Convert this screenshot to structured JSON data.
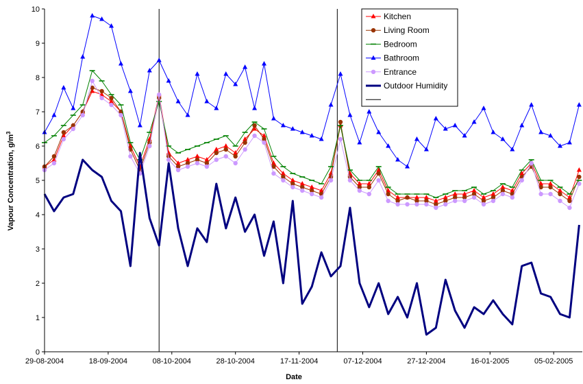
{
  "chart_data": {
    "type": "line",
    "xlabel": "Date",
    "ylabel": "Vapour Concentration, g/m",
    "ylabel_sup": "3",
    "ylim": [
      0,
      10
    ],
    "yticks": [
      "0",
      "1",
      "2",
      "3",
      "4",
      "5",
      "6",
      "7",
      "8",
      "9",
      "10"
    ],
    "xlim": [
      "2004-08-29",
      "2005-02-14"
    ],
    "xtick_labels": [
      "29-08-2004",
      "18-09-2004",
      "08-10-2004",
      "28-10-2004",
      "17-11-2004",
      "07-12-2004",
      "27-12-2004",
      "16-01-2005",
      "05-02-2005"
    ],
    "vertical_lines": [
      "2004-10-04",
      "2004-11-29"
    ],
    "legend_position": "top-right",
    "legend": [
      "Kitchen",
      "Living Room",
      "Bedroom",
      "Bathroom",
      "Entrance",
      "Outdoor Humidity",
      ""
    ],
    "colors": {
      "Kitchen": "#ff0000",
      "Living Room": "#993300",
      "Bedroom": "#008000",
      "Bathroom": "#0000ff",
      "Entrance": "#cc99ff",
      "Outdoor Humidity": "#000080",
      "vertical_lines": "#000000"
    },
    "series": [
      {
        "name": "Kitchen",
        "marker": "triangle",
        "x": [
          "2004-08-29",
          "2004-09-01",
          "2004-09-04",
          "2004-09-07",
          "2004-09-10",
          "2004-09-13",
          "2004-09-16",
          "2004-09-19",
          "2004-09-22",
          "2004-09-25",
          "2004-09-28",
          "2004-10-01",
          "2004-10-04",
          "2004-10-07",
          "2004-10-10",
          "2004-10-13",
          "2004-10-16",
          "2004-10-19",
          "2004-10-22",
          "2004-10-25",
          "2004-10-28",
          "2004-10-31",
          "2004-11-03",
          "2004-11-06",
          "2004-11-09",
          "2004-11-12",
          "2004-11-15",
          "2004-11-18",
          "2004-11-21",
          "2004-11-24",
          "2004-11-27",
          "2004-11-30",
          "2004-12-03",
          "2004-12-06",
          "2004-12-09",
          "2004-12-12",
          "2004-12-15",
          "2004-12-18",
          "2004-12-21",
          "2004-12-24",
          "2004-12-27",
          "2004-12-30",
          "2005-01-02",
          "2005-01-05",
          "2005-01-08",
          "2005-01-11",
          "2005-01-14",
          "2005-01-17",
          "2005-01-20",
          "2005-01-23",
          "2005-01-26",
          "2005-01-29",
          "2005-02-01",
          "2005-02-04",
          "2005-02-07",
          "2005-02-10",
          "2005-02-13"
        ],
        "y": [
          5.4,
          5.6,
          6.3,
          6.6,
          7.0,
          7.6,
          7.5,
          7.3,
          7.0,
          6.0,
          5.4,
          6.2,
          7.5,
          5.8,
          5.5,
          5.6,
          5.7,
          5.6,
          5.9,
          6.0,
          5.8,
          6.2,
          6.5,
          6.3,
          5.5,
          5.2,
          5.0,
          4.9,
          4.8,
          4.7,
          5.2,
          6.6,
          5.2,
          4.9,
          4.9,
          5.3,
          4.7,
          4.5,
          4.5,
          4.5,
          4.5,
          4.4,
          4.5,
          4.6,
          4.6,
          4.7,
          4.5,
          4.6,
          4.8,
          4.7,
          5.2,
          5.5,
          4.9,
          4.9,
          4.7,
          4.5,
          5.3
        ]
      },
      {
        "name": "Living Room",
        "marker": "circle",
        "x": [
          "2004-08-29",
          "2004-09-01",
          "2004-09-04",
          "2004-09-07",
          "2004-09-10",
          "2004-09-13",
          "2004-09-16",
          "2004-09-19",
          "2004-09-22",
          "2004-09-25",
          "2004-09-28",
          "2004-10-01",
          "2004-10-04",
          "2004-10-07",
          "2004-10-10",
          "2004-10-13",
          "2004-10-16",
          "2004-10-19",
          "2004-10-22",
          "2004-10-25",
          "2004-10-28",
          "2004-10-31",
          "2004-11-03",
          "2004-11-06",
          "2004-11-09",
          "2004-11-12",
          "2004-11-15",
          "2004-11-18",
          "2004-11-21",
          "2004-11-24",
          "2004-11-27",
          "2004-11-30",
          "2004-12-03",
          "2004-12-06",
          "2004-12-09",
          "2004-12-12",
          "2004-12-15",
          "2004-12-18",
          "2004-12-21",
          "2004-12-24",
          "2004-12-27",
          "2004-12-30",
          "2005-01-02",
          "2005-01-05",
          "2005-01-08",
          "2005-01-11",
          "2005-01-14",
          "2005-01-17",
          "2005-01-20",
          "2005-01-23",
          "2005-01-26",
          "2005-01-29",
          "2005-02-01",
          "2005-02-04",
          "2005-02-07",
          "2005-02-10",
          "2005-02-13"
        ],
        "y": [
          5.4,
          5.7,
          6.4,
          6.6,
          7.0,
          7.7,
          7.6,
          7.4,
          7.0,
          5.9,
          5.3,
          6.1,
          7.4,
          5.7,
          5.4,
          5.5,
          5.6,
          5.5,
          5.8,
          5.9,
          5.7,
          6.1,
          6.6,
          6.2,
          5.4,
          5.1,
          4.9,
          4.8,
          4.7,
          4.6,
          5.1,
          6.7,
          5.1,
          4.8,
          4.8,
          5.2,
          4.6,
          4.4,
          4.5,
          4.4,
          4.4,
          4.3,
          4.4,
          4.5,
          4.5,
          4.6,
          4.4,
          4.5,
          4.7,
          4.6,
          5.1,
          5.4,
          4.8,
          4.8,
          4.6,
          4.4,
          5.1
        ]
      },
      {
        "name": "Bedroom",
        "marker": "dash",
        "x": [
          "2004-08-29",
          "2004-09-01",
          "2004-09-04",
          "2004-09-07",
          "2004-09-10",
          "2004-09-13",
          "2004-09-16",
          "2004-09-19",
          "2004-09-22",
          "2004-09-25",
          "2004-09-28",
          "2004-10-01",
          "2004-10-04",
          "2004-10-07",
          "2004-10-10",
          "2004-10-13",
          "2004-10-16",
          "2004-10-19",
          "2004-10-22",
          "2004-10-25",
          "2004-10-28",
          "2004-10-31",
          "2004-11-03",
          "2004-11-06",
          "2004-11-09",
          "2004-11-12",
          "2004-11-15",
          "2004-11-18",
          "2004-11-21",
          "2004-11-24",
          "2004-11-27",
          "2004-11-30",
          "2004-12-03",
          "2004-12-06",
          "2004-12-09",
          "2004-12-12",
          "2004-12-15",
          "2004-12-18",
          "2004-12-21",
          "2004-12-24",
          "2004-12-27",
          "2004-12-30",
          "2005-01-02",
          "2005-01-05",
          "2005-01-08",
          "2005-01-11",
          "2005-01-14",
          "2005-01-17",
          "2005-01-20",
          "2005-01-23",
          "2005-01-26",
          "2005-01-29",
          "2005-02-01",
          "2005-02-04",
          "2005-02-07",
          "2005-02-10",
          "2005-02-13"
        ],
        "y": [
          6.1,
          6.3,
          6.6,
          6.9,
          7.2,
          8.2,
          7.9,
          7.5,
          7.2,
          6.1,
          5.6,
          6.4,
          7.3,
          6.0,
          5.8,
          5.9,
          6.0,
          6.1,
          6.2,
          6.3,
          6.0,
          6.4,
          6.7,
          6.5,
          5.7,
          5.4,
          5.2,
          5.1,
          5.0,
          4.9,
          5.4,
          6.6,
          5.3,
          5.0,
          5.0,
          5.4,
          4.8,
          4.6,
          4.6,
          4.6,
          4.6,
          4.5,
          4.6,
          4.7,
          4.7,
          4.8,
          4.6,
          4.7,
          4.9,
          4.8,
          5.3,
          5.6,
          5.0,
          5.0,
          4.8,
          4.6,
          5.0
        ]
      },
      {
        "name": "Bathroom",
        "marker": "triangle",
        "x": [
          "2004-08-29",
          "2004-09-01",
          "2004-09-04",
          "2004-09-07",
          "2004-09-10",
          "2004-09-13",
          "2004-09-16",
          "2004-09-19",
          "2004-09-22",
          "2004-09-25",
          "2004-09-28",
          "2004-10-01",
          "2004-10-04",
          "2004-10-07",
          "2004-10-10",
          "2004-10-13",
          "2004-10-16",
          "2004-10-19",
          "2004-10-22",
          "2004-10-25",
          "2004-10-28",
          "2004-10-31",
          "2004-11-03",
          "2004-11-06",
          "2004-11-09",
          "2004-11-12",
          "2004-11-15",
          "2004-11-18",
          "2004-11-21",
          "2004-11-24",
          "2004-11-27",
          "2004-11-30",
          "2004-12-03",
          "2004-12-06",
          "2004-12-09",
          "2004-12-12",
          "2004-12-15",
          "2004-12-18",
          "2004-12-21",
          "2004-12-24",
          "2004-12-27",
          "2004-12-30",
          "2005-01-02",
          "2005-01-05",
          "2005-01-08",
          "2005-01-11",
          "2005-01-14",
          "2005-01-17",
          "2005-01-20",
          "2005-01-23",
          "2005-01-26",
          "2005-01-29",
          "2005-02-01",
          "2005-02-04",
          "2005-02-07",
          "2005-02-10",
          "2005-02-13"
        ],
        "y": [
          6.4,
          6.9,
          7.7,
          7.1,
          8.6,
          9.8,
          9.7,
          9.5,
          8.4,
          7.6,
          6.6,
          8.2,
          8.5,
          7.9,
          7.3,
          6.9,
          8.1,
          7.3,
          7.1,
          8.1,
          7.8,
          8.3,
          7.1,
          8.4,
          6.8,
          6.6,
          6.5,
          6.4,
          6.3,
          6.2,
          7.2,
          8.1,
          6.9,
          6.1,
          7.0,
          6.4,
          6.0,
          5.6,
          5.4,
          6.2,
          5.9,
          6.8,
          6.5,
          6.6,
          6.3,
          6.7,
          7.1,
          6.4,
          6.2,
          5.9,
          6.6,
          7.2,
          6.4,
          6.3,
          6.0,
          6.1,
          7.2
        ]
      },
      {
        "name": "Entrance",
        "marker": "circle",
        "x": [
          "2004-08-29",
          "2004-09-01",
          "2004-09-04",
          "2004-09-07",
          "2004-09-10",
          "2004-09-13",
          "2004-09-16",
          "2004-09-19",
          "2004-09-22",
          "2004-09-25",
          "2004-09-28",
          "2004-10-01",
          "2004-10-04",
          "2004-10-07",
          "2004-10-10",
          "2004-10-13",
          "2004-10-16",
          "2004-10-19",
          "2004-10-22",
          "2004-10-25",
          "2004-10-28",
          "2004-10-31",
          "2004-11-03",
          "2004-11-06",
          "2004-11-09",
          "2004-11-12",
          "2004-11-15",
          "2004-11-18",
          "2004-11-21",
          "2004-11-24",
          "2004-11-27",
          "2004-11-30",
          "2004-12-03",
          "2004-12-06",
          "2004-12-09",
          "2004-12-12",
          "2004-12-15",
          "2004-12-18",
          "2004-12-21",
          "2004-12-24",
          "2004-12-27",
          "2004-12-30",
          "2005-01-02",
          "2005-01-05",
          "2005-01-08",
          "2005-01-11",
          "2005-01-14",
          "2005-01-17",
          "2005-01-20",
          "2005-01-23",
          "2005-01-26",
          "2005-01-29",
          "2005-02-01",
          "2005-02-04",
          "2005-02-07",
          "2005-02-10",
          "2005-02-13"
        ],
        "y": [
          5.3,
          5.5,
          6.2,
          6.5,
          6.9,
          7.9,
          7.4,
          7.2,
          6.9,
          5.7,
          5.2,
          6.0,
          7.5,
          5.6,
          5.3,
          5.4,
          5.5,
          5.4,
          5.6,
          5.7,
          5.5,
          5.9,
          6.3,
          6.1,
          5.2,
          5.0,
          4.8,
          4.7,
          4.6,
          4.5,
          5.0,
          6.2,
          5.0,
          4.7,
          4.6,
          5.0,
          4.4,
          4.3,
          4.3,
          4.3,
          4.3,
          4.2,
          4.3,
          4.4,
          4.4,
          4.5,
          4.3,
          4.4,
          4.6,
          4.5,
          5.0,
          5.5,
          4.6,
          4.6,
          4.4,
          4.2,
          4.9
        ]
      },
      {
        "name": "Outdoor Humidity",
        "marker": "none",
        "x": [
          "2004-08-29",
          "2004-09-01",
          "2004-09-04",
          "2004-09-07",
          "2004-09-10",
          "2004-09-13",
          "2004-09-16",
          "2004-09-19",
          "2004-09-22",
          "2004-09-25",
          "2004-09-28",
          "2004-10-01",
          "2004-10-04",
          "2004-10-07",
          "2004-10-10",
          "2004-10-13",
          "2004-10-16",
          "2004-10-19",
          "2004-10-22",
          "2004-10-25",
          "2004-10-28",
          "2004-10-31",
          "2004-11-03",
          "2004-11-06",
          "2004-11-09",
          "2004-11-12",
          "2004-11-15",
          "2004-11-18",
          "2004-11-21",
          "2004-11-24",
          "2004-11-27",
          "2004-11-30",
          "2004-12-03",
          "2004-12-06",
          "2004-12-09",
          "2004-12-12",
          "2004-12-15",
          "2004-12-18",
          "2004-12-21",
          "2004-12-24",
          "2004-12-27",
          "2004-12-30",
          "2005-01-02",
          "2005-01-05",
          "2005-01-08",
          "2005-01-11",
          "2005-01-14",
          "2005-01-17",
          "2005-01-20",
          "2005-01-23",
          "2005-01-26",
          "2005-01-29",
          "2005-02-01",
          "2005-02-04",
          "2005-02-07",
          "2005-02-10",
          "2005-02-13"
        ],
        "y": [
          4.6,
          4.1,
          4.5,
          4.6,
          5.6,
          5.3,
          5.1,
          4.4,
          4.1,
          2.5,
          5.8,
          3.9,
          3.1,
          5.5,
          3.6,
          2.5,
          3.6,
          3.2,
          4.9,
          3.6,
          4.5,
          3.5,
          4.0,
          2.8,
          3.8,
          2.0,
          4.4,
          1.4,
          1.9,
          2.9,
          2.2,
          2.5,
          4.2,
          2.0,
          1.3,
          2.0,
          1.1,
          1.6,
          1.0,
          2.0,
          0.5,
          0.7,
          2.1,
          1.2,
          0.7,
          1.3,
          1.1,
          1.5,
          1.1,
          0.8,
          2.5,
          2.6,
          1.7,
          1.6,
          1.1,
          1.0,
          3.7
        ]
      }
    ]
  }
}
